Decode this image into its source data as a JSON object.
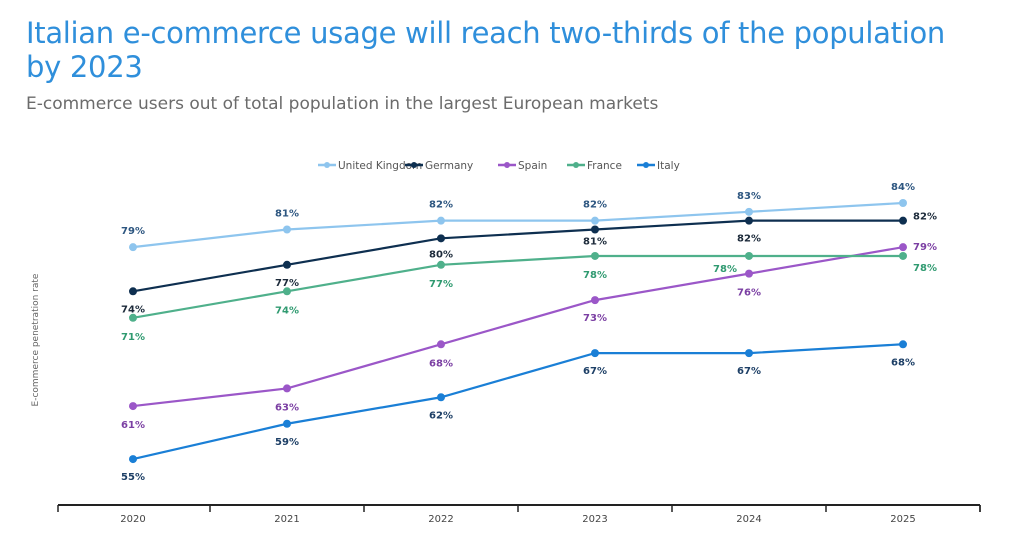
{
  "title": "Italian e-commerce usage will reach two-thirds of the population by 2023",
  "subtitle": "E-commerce users out of total population in the largest European markets",
  "chart_data": {
    "type": "line",
    "title": "Italian e-commerce usage will reach two-thirds of the population by 2023",
    "subtitle": "E-commerce users out of total population in the largest European markets",
    "xlabel": "",
    "ylabel": "E-commerce penetration rate",
    "categories": [
      "2020",
      "2021",
      "2022",
      "2023",
      "2024",
      "2025"
    ],
    "ylim": [
      50,
      90
    ],
    "grid": false,
    "legend": "top",
    "unit": "%",
    "series": [
      {
        "name": "United Kingdom",
        "color": "#8ec5ee",
        "label_color": "#2d5680",
        "values": [
          79,
          81,
          82,
          82,
          83,
          84
        ]
      },
      {
        "name": "Germany",
        "color": "#0e2f50",
        "label_color": "#1c2a3a",
        "values": [
          74,
          77,
          80,
          81,
          82,
          82
        ]
      },
      {
        "name": "Spain",
        "color": "#9b57c8",
        "label_color": "#7b3fa3",
        "values": [
          61,
          63,
          68,
          73,
          76,
          79
        ]
      },
      {
        "name": "France",
        "color": "#4fb08b",
        "label_color": "#2f9a70",
        "values": [
          71,
          74,
          77,
          78,
          78,
          78
        ]
      },
      {
        "name": "Italy",
        "color": "#1a7fd6",
        "label_color": "#1d3f66",
        "values": [
          55,
          59,
          62,
          67,
          67,
          68
        ]
      }
    ]
  }
}
